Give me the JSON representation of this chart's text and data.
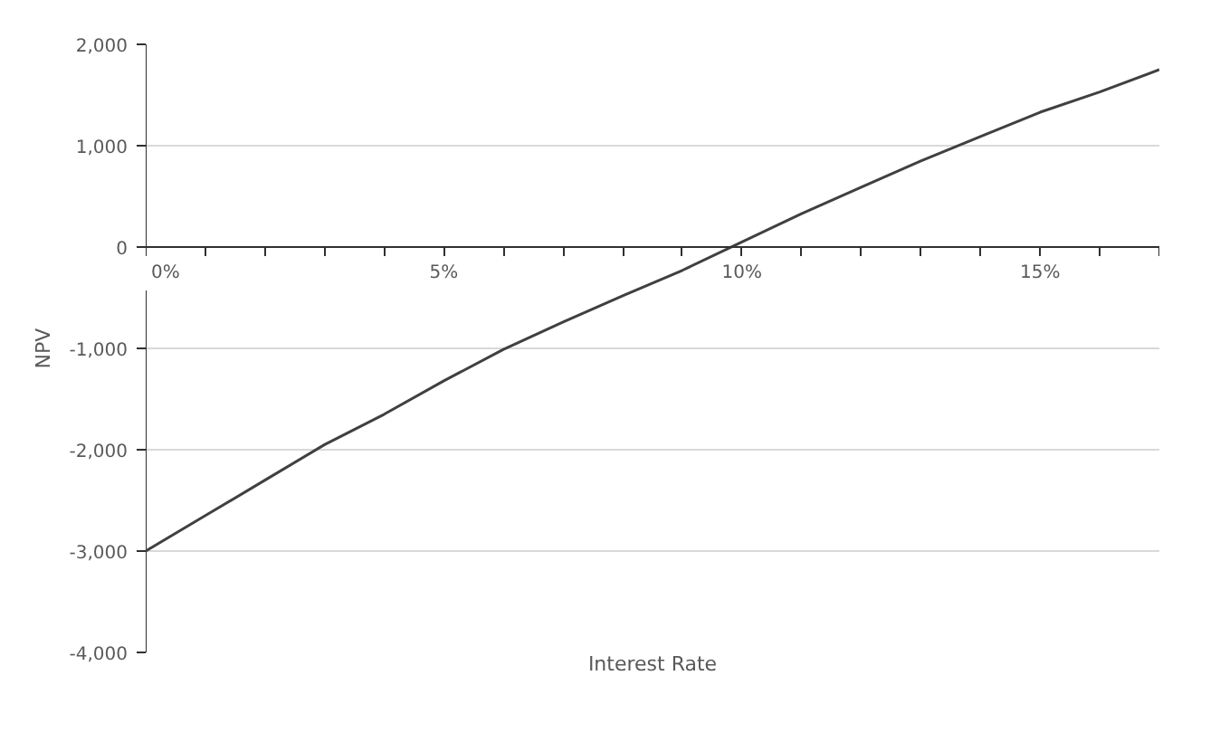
{
  "chart_data": {
    "type": "line",
    "xlabel": "Interest Rate",
    "ylabel": "NPV",
    "x": [
      0,
      1,
      2,
      3,
      4,
      5,
      6,
      7,
      8,
      9,
      10,
      11,
      12,
      13,
      14,
      15,
      16,
      17
    ],
    "series": [
      {
        "color": "#404040",
        "values": [
          -3000,
          -2650,
          -2300,
          -1950,
          -1650,
          -1320,
          -1010,
          -740,
          -480,
          -230,
          50,
          330,
          590,
          850,
          1090,
          1330,
          1530,
          1750
        ]
      }
    ],
    "xlim": [
      0,
      17
    ],
    "xticks": [
      {
        "value": 0,
        "label": "0%"
      },
      {
        "value": 1,
        "label": null
      },
      {
        "value": 2,
        "label": null
      },
      {
        "value": 3,
        "label": null
      },
      {
        "value": 4,
        "label": null
      },
      {
        "value": 5,
        "label": "5%"
      },
      {
        "value": 6,
        "label": null
      },
      {
        "value": 7,
        "label": null
      },
      {
        "value": 8,
        "label": null
      },
      {
        "value": 9,
        "label": null
      },
      {
        "value": 10,
        "label": "10%"
      },
      {
        "value": 11,
        "label": null
      },
      {
        "value": 12,
        "label": null
      },
      {
        "value": 13,
        "label": null
      },
      {
        "value": 14,
        "label": null
      },
      {
        "value": 15,
        "label": "15%"
      },
      {
        "value": 16,
        "label": null
      },
      {
        "value": 17,
        "label": null
      }
    ],
    "ylim": [
      -4000,
      2000
    ],
    "yticks": [
      {
        "value": -4000,
        "label": "-4,000"
      },
      {
        "value": -3000,
        "label": "-3,000"
      },
      {
        "value": -2000,
        "label": "-2,000"
      },
      {
        "value": -1000,
        "label": "-1,000"
      },
      {
        "value": 0,
        "label": "0"
      },
      {
        "value": 1000,
        "label": "1,000"
      },
      {
        "value": 2000,
        "label": "2,000"
      }
    ],
    "grid": "y",
    "marker": "none",
    "line_style": "solid"
  }
}
